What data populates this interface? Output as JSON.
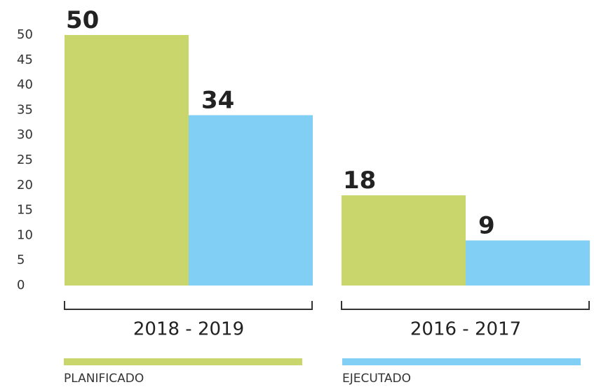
{
  "chart_data": {
    "type": "bar",
    "categories": [
      "2018 - 2019",
      "2016 - 2017"
    ],
    "series": [
      {
        "name": "PLANIFICADO",
        "color": "#c8d66b",
        "values": [
          50,
          18
        ]
      },
      {
        "name": "EJECUTADO",
        "color": "#81cff4",
        "values": [
          34,
          9
        ]
      }
    ],
    "ylim": [
      0,
      50
    ],
    "yticks": [
      0,
      5,
      10,
      15,
      20,
      25,
      30,
      35,
      40,
      45,
      50
    ],
    "grid": false
  }
}
